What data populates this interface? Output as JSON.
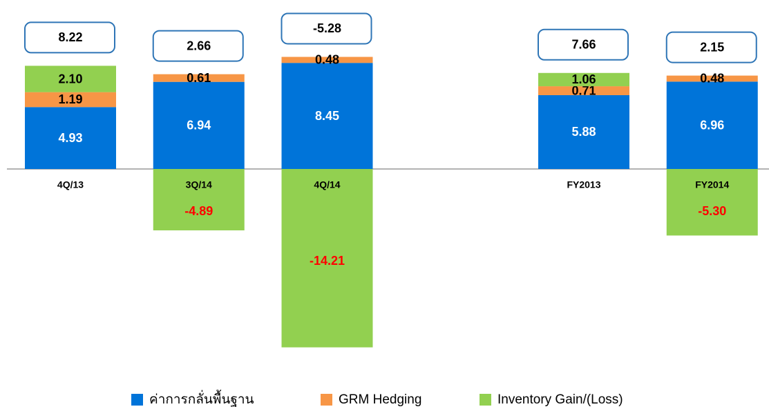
{
  "chart_data": {
    "type": "stacked_bar",
    "categories": [
      "4Q/13",
      "3Q/14",
      "4Q/14",
      null,
      "FY2013",
      "FY2014"
    ],
    "series": [
      {
        "name": "ค่าการกลั่นพื้นฐาน",
        "color": "#0074d9",
        "values": [
          4.93,
          6.94,
          8.45,
          null,
          5.88,
          6.96
        ]
      },
      {
        "name": "GRM Hedging",
        "color": "#f79646",
        "values": [
          1.19,
          0.61,
          0.48,
          null,
          0.71,
          0.48
        ]
      },
      {
        "name": "Inventory Gain/(Loss)",
        "color": "#92d050",
        "values": [
          2.1,
          -4.89,
          -14.21,
          null,
          1.06,
          -5.3
        ],
        "value_labels": [
          "2.10",
          "-4.89",
          "-14.21",
          null,
          "1.06",
          "-5.30"
        ]
      }
    ],
    "totals": [
      8.22,
      2.66,
      -5.28,
      null,
      7.66,
      2.15
    ]
  }
}
